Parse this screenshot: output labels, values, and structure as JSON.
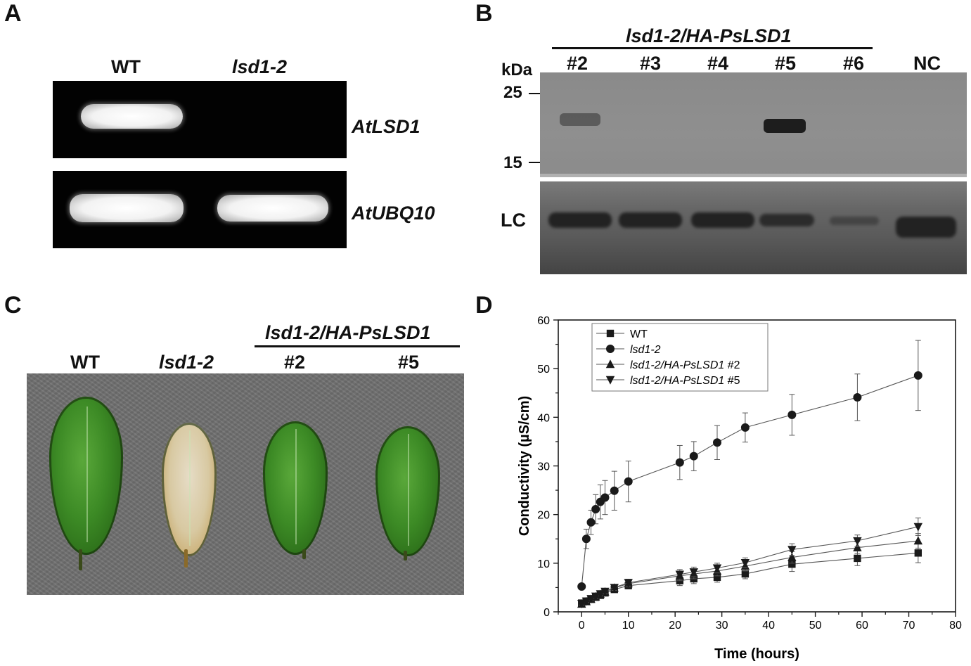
{
  "panels": {
    "A": {
      "letter": "A",
      "col_wt": "WT",
      "col_mut": "lsd1-2",
      "gene1": "AtLSD1",
      "gene2": "AtUBQ10"
    },
    "B": {
      "letter": "B",
      "group": "lsd1-2/HA-PsLSD1",
      "lanes": [
        "#2",
        "#3",
        "#4",
        "#5",
        "#6",
        "NC"
      ],
      "kda": "kDa",
      "mw25": "25",
      "mw15": "15",
      "lc": "LC"
    },
    "C": {
      "letter": "C",
      "wt": "WT",
      "mut": "lsd1-2",
      "group": "lsd1-2/HA-PsLSD1",
      "l2": "#2",
      "l5": "#5"
    },
    "D": {
      "letter": "D"
    }
  },
  "chart_data": {
    "type": "line",
    "xlabel": "Time (hours)",
    "ylabel": "Conductivity (µS/cm)",
    "xlim": [
      -5,
      80
    ],
    "ylim": [
      0,
      60
    ],
    "xticks": [
      0,
      10,
      20,
      30,
      40,
      50,
      60,
      70,
      80
    ],
    "yticks": [
      0,
      10,
      20,
      30,
      40,
      50,
      60
    ],
    "legend_position": "top-left",
    "x": [
      0,
      1,
      2,
      3,
      4,
      5,
      7,
      10,
      21,
      24,
      29,
      35,
      45,
      59,
      72
    ],
    "series": [
      {
        "name": "WT",
        "marker": "square",
        "values": [
          1.8,
          2.2,
          2.6,
          3.0,
          3.4,
          3.9,
          4.6,
          5.4,
          6.4,
          6.8,
          7.1,
          7.8,
          9.8,
          11.0,
          12.1
        ],
        "errors": [
          0.3,
          0.3,
          0.4,
          0.4,
          0.4,
          0.5,
          0.6,
          0.7,
          1.0,
          1.0,
          1.0,
          1.0,
          1.5,
          1.5,
          2.0
        ]
      },
      {
        "name": "lsd1-2",
        "marker": "circle",
        "values": [
          5.2,
          15.0,
          18.4,
          21.1,
          22.6,
          23.5,
          24.9,
          26.8,
          30.7,
          32.0,
          34.8,
          37.9,
          40.5,
          44.1,
          48.6
        ],
        "errors": [
          0.5,
          2.0,
          2.5,
          3.0,
          3.5,
          3.5,
          4.0,
          4.2,
          3.5,
          3.0,
          3.5,
          3.0,
          4.2,
          4.8,
          7.2
        ]
      },
      {
        "name": "lsd1-2/HA-PsLSD1 #2",
        "marker": "triangle-up",
        "values": [
          1.6,
          2.1,
          2.6,
          3.1,
          3.6,
          4.1,
          4.9,
          5.8,
          7.4,
          7.8,
          8.4,
          9.4,
          11.2,
          13.2,
          14.6
        ],
        "errors": [
          0.3,
          0.3,
          0.4,
          0.4,
          0.4,
          0.5,
          0.6,
          0.7,
          1.0,
          1.0,
          1.0,
          1.0,
          1.2,
          1.2,
          1.5
        ]
      },
      {
        "name": "lsd1-2/HA-PsLSD1 #5",
        "marker": "triangle-down",
        "values": [
          1.7,
          2.2,
          2.7,
          3.2,
          3.7,
          4.2,
          5.0,
          6.0,
          7.7,
          8.2,
          9.0,
          10.1,
          12.8,
          14.6,
          17.5
        ],
        "errors": [
          0.3,
          0.3,
          0.4,
          0.4,
          0.4,
          0.5,
          0.6,
          0.7,
          1.0,
          1.0,
          1.0,
          1.0,
          1.2,
          1.2,
          1.8
        ]
      }
    ]
  },
  "colors": {
    "ink": "#1a1a1a",
    "line": "#555555",
    "gel": "#020202"
  }
}
